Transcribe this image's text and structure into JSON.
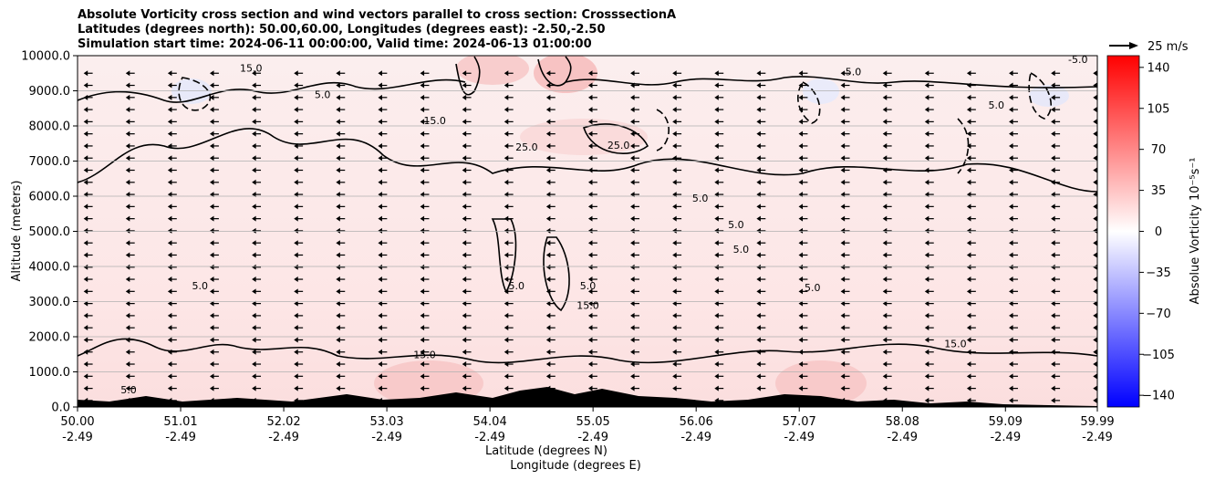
{
  "title_lines": [
    "Absolute Vorticity cross section and wind vectors parallel to cross section: CrosssectionA",
    "Latitudes (degrees north): 50.00,60.00, Longitudes (degrees east): -2.50,-2.50",
    "Simulation start time: 2024-06-11 00:00:00, Valid time: 2024-06-13 01:00:00"
  ],
  "quiver_key": "25 m/s",
  "chart_data": {
    "type": "heatmap",
    "subtype": "cross-section contour with wind vectors",
    "xlabel": [
      "Latitude (degrees N)",
      "Longitude (degrees E)"
    ],
    "x_ticks": [
      {
        "lat": "50.00",
        "lon": "-2.49"
      },
      {
        "lat": "51.01",
        "lon": "-2.49"
      },
      {
        "lat": "52.02",
        "lon": "-2.49"
      },
      {
        "lat": "53.03",
        "lon": "-2.49"
      },
      {
        "lat": "54.04",
        "lon": "-2.49"
      },
      {
        "lat": "55.05",
        "lon": "-2.49"
      },
      {
        "lat": "56.06",
        "lon": "-2.49"
      },
      {
        "lat": "57.07",
        "lon": "-2.49"
      },
      {
        "lat": "58.08",
        "lon": "-2.49"
      },
      {
        "lat": "59.09",
        "lon": "-2.49"
      },
      {
        "lat": "59.99",
        "lon": "-2.49"
      }
    ],
    "xlim": [
      50.0,
      59.99
    ],
    "ylabel": "Altitude (meters)",
    "ylim": [
      0,
      10000
    ],
    "y_ticks": [
      "0.0",
      "1000.0",
      "2000.0",
      "3000.0",
      "4000.0",
      "5000.0",
      "6000.0",
      "7000.0",
      "8000.0",
      "9000.0",
      "10000.0"
    ],
    "grid": "horizontal",
    "colorbar": {
      "label": "Absolue Vorticity 10⁻⁵s⁻¹",
      "range": [
        -150,
        150
      ],
      "ticks": [
        "140",
        "105",
        "70",
        "35",
        "0",
        "−35",
        "−70",
        "−105",
        "−140"
      ],
      "colormap": "bwr",
      "colors": {
        "low": "#0000ff",
        "mid": "#ffffff",
        "high": "#ff0000"
      }
    },
    "contour_levels": [
      "-5.0",
      "5.0",
      "15.0",
      "25.0"
    ],
    "contour_labels": [
      {
        "text": "15.0",
        "lat": 51.7,
        "alt": 9650
      },
      {
        "text": "15.0",
        "lat": 53.5,
        "alt": 8150
      },
      {
        "text": "25.0",
        "lat": 54.4,
        "alt": 7400
      },
      {
        "text": "25.0",
        "lat": 55.3,
        "alt": 7450
      },
      {
        "text": "5.0",
        "lat": 56.45,
        "alt": 5200
      },
      {
        "text": "5.0",
        "lat": 56.5,
        "alt": 4500
      },
      {
        "text": "5.0",
        "lat": 51.2,
        "alt": 3450
      },
      {
        "text": "5.0",
        "lat": 54.3,
        "alt": 3450
      },
      {
        "text": "5.0",
        "lat": 55.0,
        "alt": 3450
      },
      {
        "text": "15.0",
        "lat": 55.0,
        "alt": 2900
      },
      {
        "text": "15.0",
        "lat": 53.4,
        "alt": 1500
      },
      {
        "text": "15.0",
        "lat": 58.6,
        "alt": 1800
      },
      {
        "text": "5.0",
        "lat": 57.2,
        "alt": 3400
      },
      {
        "text": "5.0",
        "lat": 59.0,
        "alt": 8600
      },
      {
        "text": "-5.0",
        "lat": 59.8,
        "alt": 9900
      },
      {
        "text": "5.0",
        "lat": 56.1,
        "alt": 5950
      },
      {
        "text": "5.0",
        "lat": 52.4,
        "alt": 8900
      },
      {
        "text": "5.0",
        "lat": 57.6,
        "alt": 9550
      },
      {
        "text": "5.0",
        "lat": 50.5,
        "alt": 500
      }
    ],
    "wind_vectors": {
      "direction": "westward (toward decreasing latitude)",
      "typical_speed_ms": 8,
      "key_speed_ms": 25
    }
  }
}
